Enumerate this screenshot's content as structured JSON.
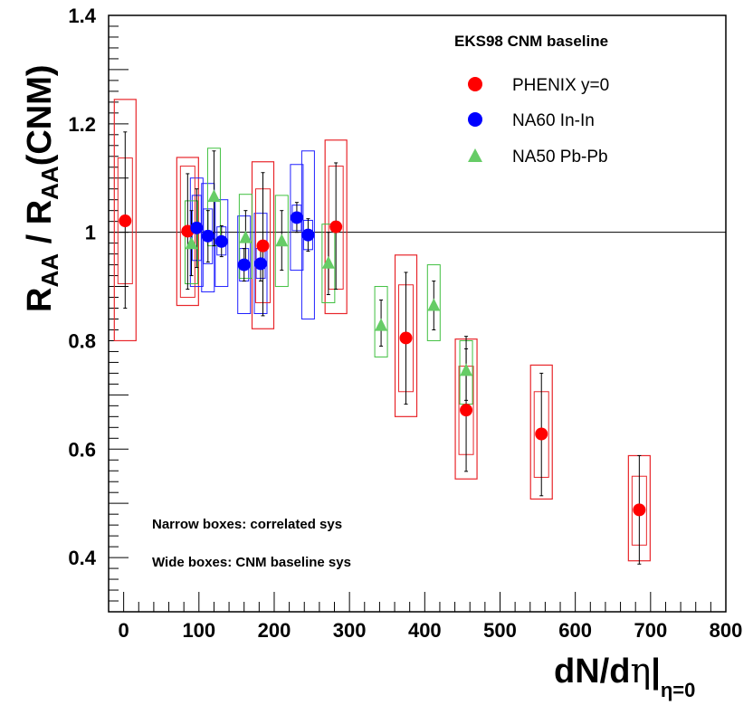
{
  "chart_data": {
    "type": "scatter",
    "xlim": [
      -20,
      800
    ],
    "ylim": [
      0.3,
      1.4
    ],
    "x_ticks": [
      0,
      100,
      200,
      300,
      400,
      500,
      600,
      700,
      800
    ],
    "y_ticks": [
      0.4,
      0.6,
      0.8,
      1.0,
      1.2,
      1.4
    ],
    "x_tick_labels": [
      "0",
      "100",
      "200",
      "300",
      "400",
      "500",
      "600",
      "700",
      "800"
    ],
    "y_tick_labels": [
      "0.4",
      "0.6",
      "0.8",
      "1",
      "1.2",
      "1.4"
    ],
    "reference_line": 1.0,
    "xlabel": {
      "main": "dN/d",
      "greek": "η",
      "bar": "|",
      "sub": "η=0"
    },
    "ylabel": {
      "r1": "R",
      "s1": "AA",
      "mid": " / R",
      "s2": "AA",
      "end": "(CNM)"
    },
    "legend_title": "EKS98 CNM baseline",
    "legend_position": "top-right",
    "annotations": [
      "Narrow boxes: correlated sys",
      "Wide boxes: CNM baseline sys"
    ],
    "series": [
      {
        "name": "PHENIX y=0",
        "marker": "circle",
        "color": "#ff0000",
        "box_color": "#e8262b",
        "points": [
          {
            "x": 2,
            "y": 1.021,
            "stat": [
              0.86,
              1.185
            ],
            "narrow": [
              0.905,
              1.137
            ],
            "wide": [
              0.8,
              1.245
            ]
          },
          {
            "x": 85,
            "y": 1.002,
            "stat": [
              0.895,
              1.108
            ],
            "narrow": [
              0.88,
              1.122
            ],
            "wide": [
              0.865,
              1.138
            ]
          },
          {
            "x": 185,
            "y": 0.975,
            "stat": [
              0.846,
              1.11
            ],
            "narrow": [
              0.87,
              1.08
            ],
            "wide": [
              0.822,
              1.13
            ]
          },
          {
            "x": 282,
            "y": 1.01,
            "stat": [
              0.895,
              1.128
            ],
            "narrow": [
              0.895,
              1.122
            ],
            "wide": [
              0.85,
              1.17
            ]
          },
          {
            "x": 375,
            "y": 0.805,
            "stat": [
              0.683,
              0.926
            ],
            "narrow": [
              0.706,
              0.903
            ],
            "wide": [
              0.66,
              0.958
            ]
          },
          {
            "x": 455,
            "y": 0.672,
            "stat": [
              0.559,
              0.785
            ],
            "narrow": [
              0.59,
              0.753
            ],
            "wide": [
              0.545,
              0.803
            ]
          },
          {
            "x": 555,
            "y": 0.628,
            "stat": [
              0.514,
              0.74
            ],
            "narrow": [
              0.548,
              0.706
            ],
            "wide": [
              0.508,
              0.755
            ]
          },
          {
            "x": 685,
            "y": 0.488,
            "stat": [
              0.388,
              0.588
            ],
            "narrow": [
              0.423,
              0.55
            ],
            "wide": [
              0.394,
              0.588
            ]
          }
        ]
      },
      {
        "name": "NA60 In-In",
        "marker": "circle",
        "color": "#0000ff",
        "box_color": "#2020ff",
        "points": [
          {
            "x": 97,
            "y": 1.008,
            "stat": [
              0.935,
              1.08
            ],
            "narrow": [
              0.948,
              1.068
            ],
            "wide": [
              0.9,
              1.1
            ]
          },
          {
            "x": 112,
            "y": 0.993,
            "stat": [
              0.945,
              1.04
            ],
            "narrow": [
              0.942,
              1.043
            ],
            "wide": [
              0.89,
              1.09
            ]
          },
          {
            "x": 130,
            "y": 0.983,
            "stat": [
              0.955,
              1.012
            ],
            "narrow": [
              0.958,
              1.01
            ],
            "wide": [
              0.9,
              1.06
            ]
          },
          {
            "x": 160,
            "y": 0.94,
            "stat": [
              0.91,
              0.97
            ],
            "narrow": [
              0.91,
              0.97
            ],
            "wide": [
              0.85,
              1.03
            ]
          },
          {
            "x": 182,
            "y": 0.942,
            "stat": [
              0.91,
              0.975
            ],
            "narrow": [
              0.915,
              0.97
            ],
            "wide": [
              0.85,
              1.035
            ]
          },
          {
            "x": 230,
            "y": 1.027,
            "stat": [
              1.0,
              1.055
            ],
            "narrow": [
              1.003,
              1.05
            ],
            "wide": [
              0.93,
              1.125
            ]
          },
          {
            "x": 245,
            "y": 0.995,
            "stat": [
              0.965,
              1.025
            ],
            "narrow": [
              0.968,
              1.022
            ],
            "wide": [
              0.84,
              1.15
            ]
          }
        ]
      },
      {
        "name": "NA50 Pb-Pb",
        "marker": "triangle",
        "color": "#66cc66",
        "box_color": "#40c040",
        "points": [
          {
            "x": 90,
            "y": 0.979,
            "stat": [
              0.92,
              1.04
            ],
            "narrow": [
              0.905,
              1.058
            ],
            "wide": [
              0.905,
              1.058
            ]
          },
          {
            "x": 120,
            "y": 1.066,
            "stat": [
              0.975,
              1.15
            ],
            "narrow": [
              0.975,
              1.155
            ],
            "wide": [
              0.975,
              1.155
            ]
          },
          {
            "x": 162,
            "y": 0.99,
            "stat": [
              0.94,
              1.04
            ],
            "narrow": [
              0.915,
              1.07
            ],
            "wide": [
              0.915,
              1.07
            ]
          },
          {
            "x": 210,
            "y": 0.984,
            "stat": [
              0.93,
              1.04
            ],
            "narrow": [
              0.9,
              1.068
            ],
            "wide": [
              0.9,
              1.068
            ]
          },
          {
            "x": 272,
            "y": 0.943,
            "stat": [
              0.885,
              1.0
            ],
            "narrow": [
              0.87,
              1.015
            ],
            "wide": [
              0.87,
              1.015
            ]
          },
          {
            "x": 342,
            "y": 0.828,
            "stat": [
              0.79,
              0.875
            ],
            "narrow": [
              0.77,
              0.9
            ],
            "wide": [
              0.77,
              0.9
            ]
          },
          {
            "x": 412,
            "y": 0.865,
            "stat": [
              0.82,
              0.91
            ],
            "narrow": [
              0.8,
              0.94
            ],
            "wide": [
              0.8,
              0.94
            ]
          },
          {
            "x": 455,
            "y": 0.745,
            "stat": [
              0.69,
              0.808
            ],
            "narrow": [
              0.683,
              0.8
            ],
            "wide": [
              0.683,
              0.8
            ]
          }
        ]
      }
    ]
  }
}
